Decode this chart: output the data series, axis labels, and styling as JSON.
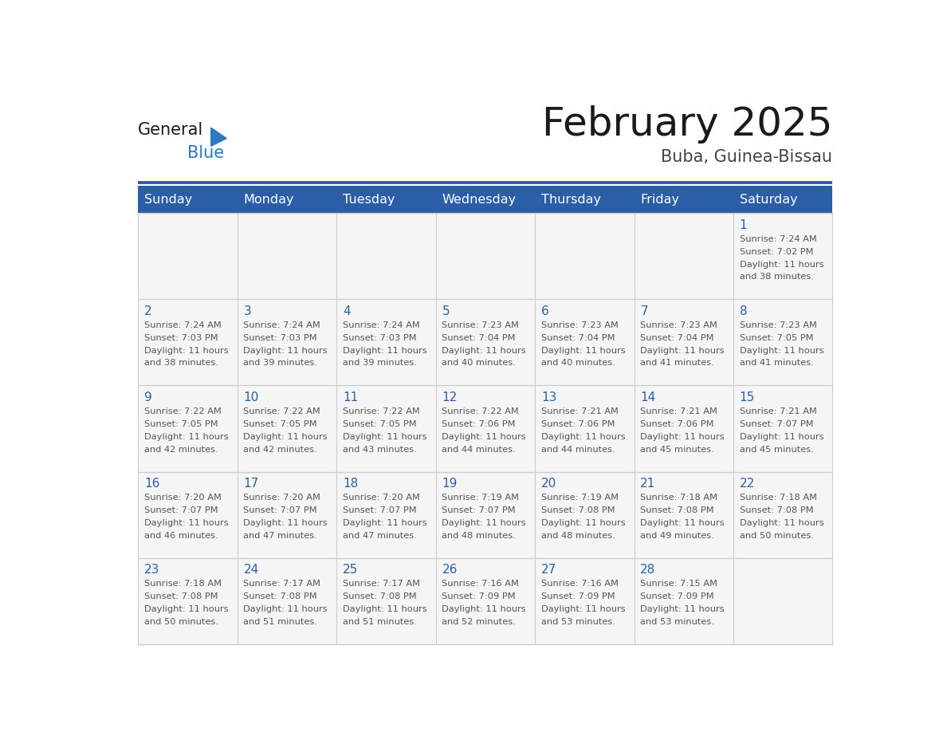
{
  "title": "February 2025",
  "subtitle": "Buba, Guinea-Bissau",
  "days_of_week": [
    "Sunday",
    "Monday",
    "Tuesday",
    "Wednesday",
    "Thursday",
    "Friday",
    "Saturday"
  ],
  "header_bg": "#2B5EA7",
  "header_text": "#FFFFFF",
  "cell_bg": "#F5F5F5",
  "day_number_color": "#2B5EA7",
  "info_text_color": "#555555",
  "border_color": "#CCCCCC",
  "title_color": "#1A1A1A",
  "subtitle_color": "#444444",
  "logo_text_color": "#1A1A1A",
  "logo_blue_color": "#2B78C5",
  "blue_line_color": "#2B5EA7",
  "calendar_data": [
    [
      null,
      null,
      null,
      null,
      null,
      null,
      {
        "day": "1",
        "sunrise": "7:24 AM",
        "sunset": "7:02 PM",
        "daylight": "11 hours",
        "daylight2": "and 38 minutes."
      }
    ],
    [
      {
        "day": "2",
        "sunrise": "7:24 AM",
        "sunset": "7:03 PM",
        "daylight": "11 hours",
        "daylight2": "and 38 minutes."
      },
      {
        "day": "3",
        "sunrise": "7:24 AM",
        "sunset": "7:03 PM",
        "daylight": "11 hours",
        "daylight2": "and 39 minutes."
      },
      {
        "day": "4",
        "sunrise": "7:24 AM",
        "sunset": "7:03 PM",
        "daylight": "11 hours",
        "daylight2": "and 39 minutes."
      },
      {
        "day": "5",
        "sunrise": "7:23 AM",
        "sunset": "7:04 PM",
        "daylight": "11 hours",
        "daylight2": "and 40 minutes."
      },
      {
        "day": "6",
        "sunrise": "7:23 AM",
        "sunset": "7:04 PM",
        "daylight": "11 hours",
        "daylight2": "and 40 minutes."
      },
      {
        "day": "7",
        "sunrise": "7:23 AM",
        "sunset": "7:04 PM",
        "daylight": "11 hours",
        "daylight2": "and 41 minutes."
      },
      {
        "day": "8",
        "sunrise": "7:23 AM",
        "sunset": "7:05 PM",
        "daylight": "11 hours",
        "daylight2": "and 41 minutes."
      }
    ],
    [
      {
        "day": "9",
        "sunrise": "7:22 AM",
        "sunset": "7:05 PM",
        "daylight": "11 hours",
        "daylight2": "and 42 minutes."
      },
      {
        "day": "10",
        "sunrise": "7:22 AM",
        "sunset": "7:05 PM",
        "daylight": "11 hours",
        "daylight2": "and 42 minutes."
      },
      {
        "day": "11",
        "sunrise": "7:22 AM",
        "sunset": "7:05 PM",
        "daylight": "11 hours",
        "daylight2": "and 43 minutes."
      },
      {
        "day": "12",
        "sunrise": "7:22 AM",
        "sunset": "7:06 PM",
        "daylight": "11 hours",
        "daylight2": "and 44 minutes."
      },
      {
        "day": "13",
        "sunrise": "7:21 AM",
        "sunset": "7:06 PM",
        "daylight": "11 hours",
        "daylight2": "and 44 minutes."
      },
      {
        "day": "14",
        "sunrise": "7:21 AM",
        "sunset": "7:06 PM",
        "daylight": "11 hours",
        "daylight2": "and 45 minutes."
      },
      {
        "day": "15",
        "sunrise": "7:21 AM",
        "sunset": "7:07 PM",
        "daylight": "11 hours",
        "daylight2": "and 45 minutes."
      }
    ],
    [
      {
        "day": "16",
        "sunrise": "7:20 AM",
        "sunset": "7:07 PM",
        "daylight": "11 hours",
        "daylight2": "and 46 minutes."
      },
      {
        "day": "17",
        "sunrise": "7:20 AM",
        "sunset": "7:07 PM",
        "daylight": "11 hours",
        "daylight2": "and 47 minutes."
      },
      {
        "day": "18",
        "sunrise": "7:20 AM",
        "sunset": "7:07 PM",
        "daylight": "11 hours",
        "daylight2": "and 47 minutes."
      },
      {
        "day": "19",
        "sunrise": "7:19 AM",
        "sunset": "7:07 PM",
        "daylight": "11 hours",
        "daylight2": "and 48 minutes."
      },
      {
        "day": "20",
        "sunrise": "7:19 AM",
        "sunset": "7:08 PM",
        "daylight": "11 hours",
        "daylight2": "and 48 minutes."
      },
      {
        "day": "21",
        "sunrise": "7:18 AM",
        "sunset": "7:08 PM",
        "daylight": "11 hours",
        "daylight2": "and 49 minutes."
      },
      {
        "day": "22",
        "sunrise": "7:18 AM",
        "sunset": "7:08 PM",
        "daylight": "11 hours",
        "daylight2": "and 50 minutes."
      }
    ],
    [
      {
        "day": "23",
        "sunrise": "7:18 AM",
        "sunset": "7:08 PM",
        "daylight": "11 hours",
        "daylight2": "and 50 minutes."
      },
      {
        "day": "24",
        "sunrise": "7:17 AM",
        "sunset": "7:08 PM",
        "daylight": "11 hours",
        "daylight2": "and 51 minutes."
      },
      {
        "day": "25",
        "sunrise": "7:17 AM",
        "sunset": "7:08 PM",
        "daylight": "11 hours",
        "daylight2": "and 51 minutes."
      },
      {
        "day": "26",
        "sunrise": "7:16 AM",
        "sunset": "7:09 PM",
        "daylight": "11 hours",
        "daylight2": "and 52 minutes."
      },
      {
        "day": "27",
        "sunrise": "7:16 AM",
        "sunset": "7:09 PM",
        "daylight": "11 hours",
        "daylight2": "and 53 minutes."
      },
      {
        "day": "28",
        "sunrise": "7:15 AM",
        "sunset": "7:09 PM",
        "daylight": "11 hours",
        "daylight2": "and 53 minutes."
      },
      null
    ]
  ]
}
